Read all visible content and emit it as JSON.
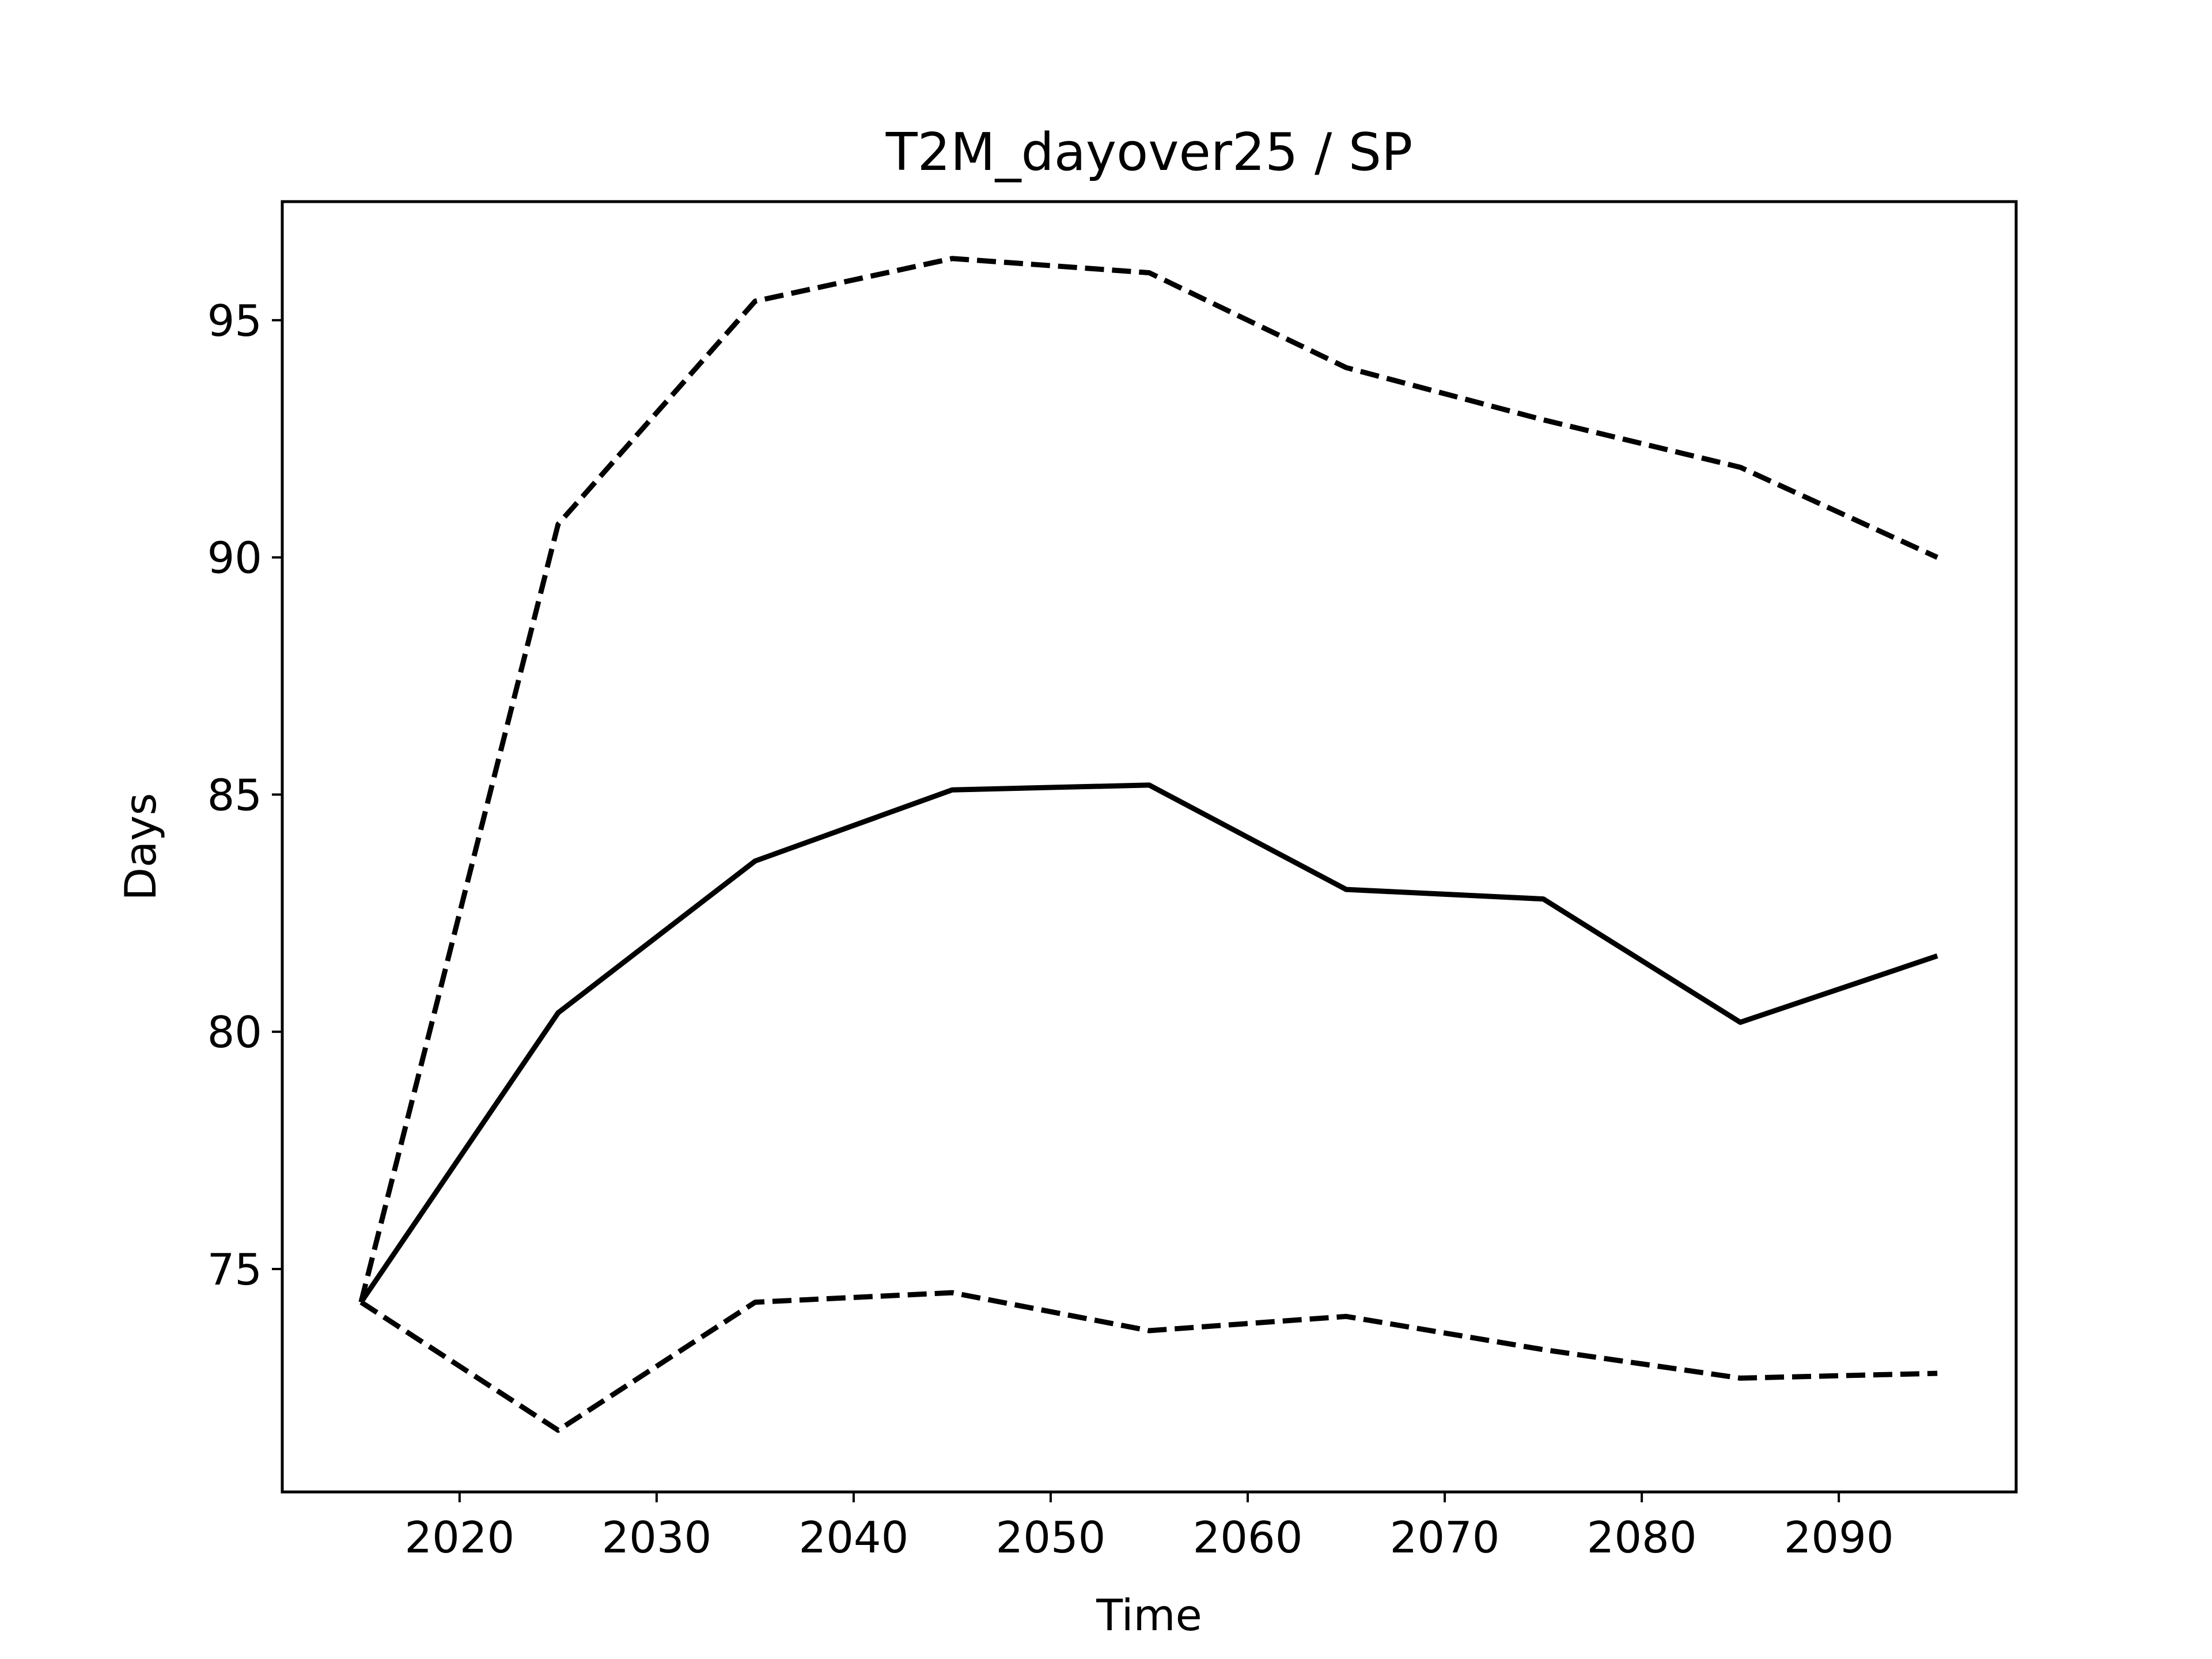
{
  "chart_data": {
    "type": "line",
    "title": "T2M_dayover25 / SP",
    "xlabel": "Time",
    "ylabel": "Days",
    "xlim": [
      2011,
      2099
    ],
    "ylim": [
      70.3,
      97.5
    ],
    "xticks": [
      2020,
      2030,
      2040,
      2050,
      2060,
      2070,
      2080,
      2090
    ],
    "yticks": [
      75,
      80,
      85,
      90,
      95
    ],
    "grid": false,
    "legend": "none",
    "x": [
      2015,
      2025,
      2035,
      2045,
      2055,
      2065,
      2075,
      2085,
      2095
    ],
    "series": [
      {
        "values": [
          74.3,
          80.4,
          83.6,
          85.1,
          85.2,
          83.0,
          82.8,
          80.2,
          81.6
        ],
        "style": "solid",
        "color": "#000000"
      },
      {
        "values": [
          74.3,
          90.7,
          95.4,
          96.3,
          96.0,
          94.0,
          92.9,
          91.9,
          90.0
        ],
        "style": "dashed",
        "color": "#000000"
      },
      {
        "values": [
          74.3,
          71.6,
          74.3,
          74.5,
          73.7,
          74.0,
          73.3,
          72.7,
          72.8
        ],
        "style": "dashed",
        "color": "#000000"
      }
    ]
  }
}
